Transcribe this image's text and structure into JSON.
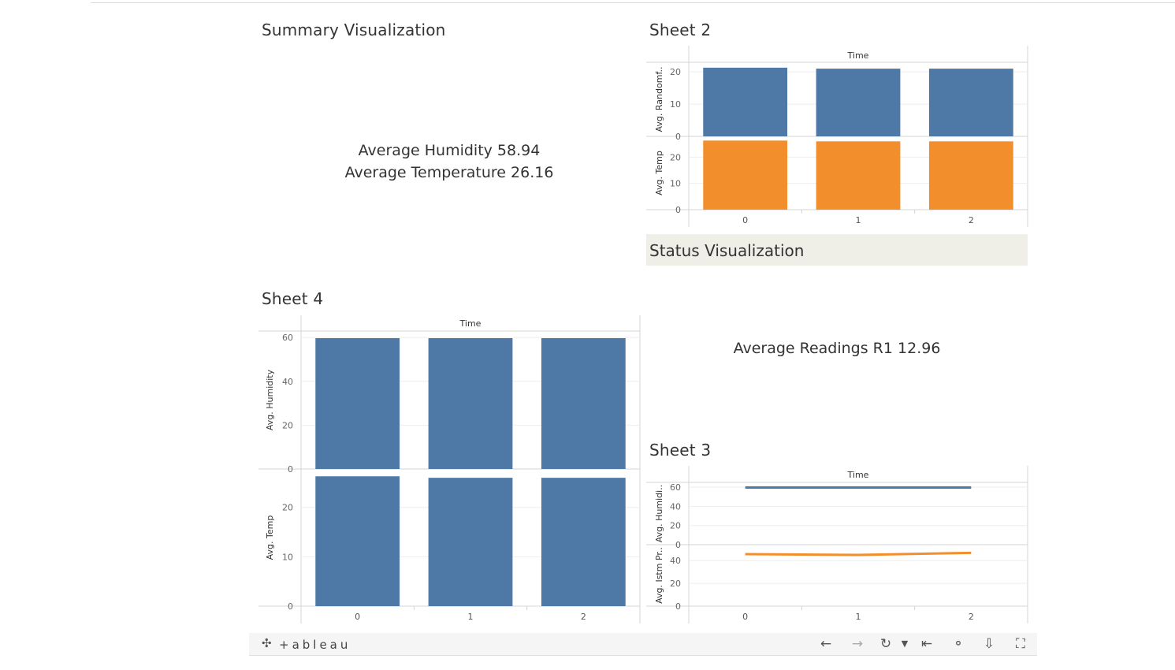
{
  "summary": {
    "title": "Summary Visualization",
    "line1": "Average Humidity 58.94",
    "line2": "Average Temperature 26.16"
  },
  "status": {
    "title": "Status Visualization",
    "text": "Average Readings R1 12.96"
  },
  "toolbar": {
    "logo": "+ableau",
    "buttons": [
      "undo-icon",
      "redo-icon",
      "revert-icon",
      "dropdown-icon",
      "first-icon",
      "share-icon",
      "download-icon",
      "fullscreen-icon"
    ]
  },
  "colors": {
    "blue": "#4e79a7",
    "orange": "#f28e2b"
  },
  "chart_data": [
    {
      "id": "sheet2",
      "title": "Sheet 2",
      "type": "bar",
      "column_header": "Time",
      "categories": [
        "0",
        "1",
        "2"
      ],
      "panes": [
        {
          "ylabel": "Avg. Randomf..",
          "ticks": [
            0,
            10,
            20
          ],
          "ylim": [
            0,
            22
          ],
          "values": [
            21.3,
            21.0,
            21.0
          ],
          "color": "#4e79a7"
        },
        {
          "ylabel": "Avg. Temp",
          "ticks": [
            0,
            10,
            20
          ],
          "ylim": [
            0,
            27
          ],
          "values": [
            26.3,
            26.0,
            26.0
          ],
          "color": "#f28e2b"
        }
      ]
    },
    {
      "id": "sheet4",
      "title": "Sheet 4",
      "type": "bar",
      "column_header": "Time",
      "categories": [
        "0",
        "1",
        "2"
      ],
      "panes": [
        {
          "ylabel": "Avg. Humidity",
          "ticks": [
            0,
            20,
            40,
            60
          ],
          "ylim": [
            0,
            61.5
          ],
          "values": [
            59.7,
            59.7,
            59.7
          ],
          "color": "#4e79a7"
        },
        {
          "ylabel": "Avg. Temp",
          "ticks": [
            0,
            10,
            20
          ],
          "ylim": [
            0,
            27.3
          ],
          "values": [
            26.3,
            26.0,
            26.0
          ],
          "color": "#4e79a7"
        }
      ]
    },
    {
      "id": "sheet3",
      "title": "Sheet 3",
      "type": "line",
      "column_header": "Time",
      "categories": [
        "0",
        "1",
        "2"
      ],
      "panes": [
        {
          "ylabel": "Avg. Humidi..",
          "ticks": [
            0,
            20,
            40,
            60
          ],
          "ylim": [
            0,
            65
          ],
          "values": [
            59.7,
            59.7,
            59.7
          ],
          "color": "#4e79a7"
        },
        {
          "ylabel": "Avg. Istm Pr..",
          "ticks": [
            0,
            20,
            40
          ],
          "ylim": [
            0,
            54
          ],
          "values": [
            45.7,
            45.0,
            46.8
          ],
          "color": "#f28e2b"
        }
      ]
    }
  ]
}
